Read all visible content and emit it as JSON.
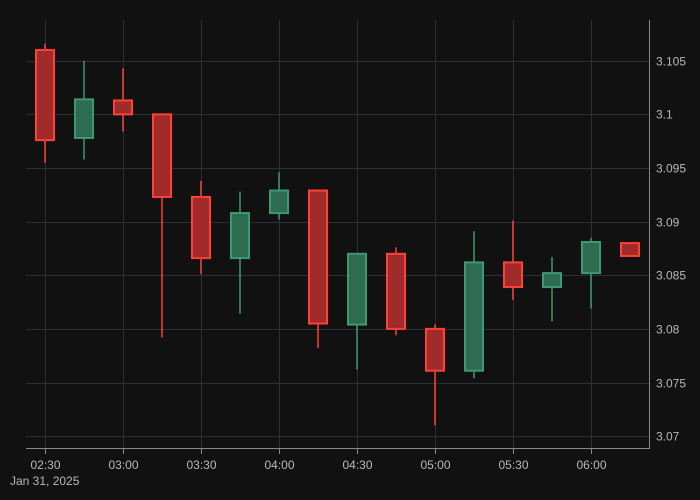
{
  "chart_data": {
    "type": "candlestick",
    "date_label": "Jan 31, 2025",
    "x_ticks": [
      "02:30",
      "03:00",
      "03:30",
      "04:00",
      "04:30",
      "05:00",
      "05:30",
      "06:00"
    ],
    "y_ticks": [
      "3.07",
      "3.075",
      "3.08",
      "3.085",
      "3.09",
      "3.095",
      "3.1",
      "3.105"
    ],
    "ylim": [
      3.0688,
      3.1088
    ],
    "grid": true,
    "colors": {
      "up_line": "#3d9970",
      "up_fill": "#2d6b52",
      "down_line": "#ff4136",
      "down_fill": "#a12a2a",
      "background": "#111111",
      "grid": "#2c3038",
      "text": "#b8b8b8"
    },
    "candles": [
      {
        "time": "02:30",
        "open": 3.106,
        "high": 3.1066,
        "low": 3.0955,
        "close": 3.0976
      },
      {
        "time": "02:45",
        "open": 3.0978,
        "high": 3.105,
        "low": 3.0958,
        "close": 3.1014
      },
      {
        "time": "03:00",
        "open": 3.1013,
        "high": 3.1043,
        "low": 3.0984,
        "close": 3.1
      },
      {
        "time": "03:15",
        "open": 3.1,
        "high": 3.1,
        "low": 3.0792,
        "close": 3.0923
      },
      {
        "time": "03:30",
        "open": 3.0923,
        "high": 3.0938,
        "low": 3.0851,
        "close": 3.0866
      },
      {
        "time": "03:45",
        "open": 3.0866,
        "high": 3.0928,
        "low": 3.0814,
        "close": 3.0908
      },
      {
        "time": "04:00",
        "open": 3.0908,
        "high": 3.0946,
        "low": 3.0902,
        "close": 3.0929
      },
      {
        "time": "04:15",
        "open": 3.0929,
        "high": 3.0929,
        "low": 3.0782,
        "close": 3.0805
      },
      {
        "time": "04:30",
        "open": 3.0804,
        "high": 3.087,
        "low": 3.0762,
        "close": 3.087
      },
      {
        "time": "04:45",
        "open": 3.087,
        "high": 3.0876,
        "low": 3.0794,
        "close": 3.08
      },
      {
        "time": "05:00",
        "open": 3.08,
        "high": 3.0804,
        "low": 3.071,
        "close": 3.0761
      },
      {
        "time": "05:15",
        "open": 3.0761,
        "high": 3.0891,
        "low": 3.0754,
        "close": 3.0862
      },
      {
        "time": "05:30",
        "open": 3.0862,
        "high": 3.0901,
        "low": 3.0827,
        "close": 3.0839
      },
      {
        "time": "05:45",
        "open": 3.0839,
        "high": 3.0867,
        "low": 3.0807,
        "close": 3.0852
      },
      {
        "time": "06:00",
        "open": 3.0852,
        "high": 3.0885,
        "low": 3.0819,
        "close": 3.0881
      },
      {
        "time": "06:15",
        "open": 3.088,
        "high": 3.088,
        "low": 3.0868,
        "close": 3.0868
      }
    ]
  }
}
